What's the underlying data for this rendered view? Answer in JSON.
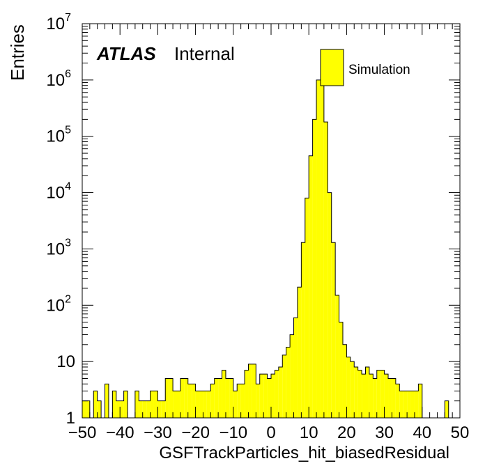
{
  "chart_data": {
    "type": "bar",
    "title": "",
    "xlabel": "GSFTrackParticles_hit_biasedResidual",
    "ylabel": "Entries",
    "xlim": [
      -50,
      50
    ],
    "ylim": [
      1,
      10000000
    ],
    "log_y": true,
    "grid": false,
    "legend_position": "top-right",
    "bar_color": "#ffff00",
    "edge_color": "#000000",
    "bin_width": 1,
    "x_tick_labels": [
      "−50",
      "−40",
      "−30",
      "−20",
      "−10",
      "0",
      "10",
      "20",
      "30",
      "40",
      "50"
    ],
    "y_tick_labels": [
      {
        "base": "1",
        "exp": ""
      },
      {
        "base": "10",
        "exp": ""
      },
      {
        "base": "10",
        "exp": "2"
      },
      {
        "base": "10",
        "exp": "3"
      },
      {
        "base": "10",
        "exp": "4"
      },
      {
        "base": "10",
        "exp": "5"
      },
      {
        "base": "10",
        "exp": "6"
      },
      {
        "base": "10",
        "exp": "7"
      }
    ],
    "series": [
      {
        "name": "Simulation",
        "bin_low_edges": [
          -50,
          -49,
          -48,
          -47,
          -46,
          -45,
          -44,
          -43,
          -42,
          -41,
          -40,
          -39,
          -38,
          -37,
          -36,
          -35,
          -34,
          -33,
          -32,
          -31,
          -30,
          -29,
          -28,
          -27,
          -26,
          -25,
          -24,
          -23,
          -22,
          -21,
          -20,
          -19,
          -18,
          -17,
          -16,
          -15,
          -14,
          -13,
          -12,
          -11,
          -10,
          -9,
          -8,
          -7,
          -6,
          -5,
          -4,
          -3,
          -2,
          -1,
          0,
          1,
          2,
          3,
          4,
          5,
          6,
          7,
          8,
          9,
          10,
          11,
          12,
          13,
          14,
          15,
          16,
          17,
          18,
          19,
          20,
          21,
          22,
          23,
          24,
          25,
          26,
          27,
          28,
          29,
          30,
          31,
          32,
          33,
          34,
          35,
          36,
          37,
          38,
          39,
          40,
          41,
          42,
          43,
          44,
          45,
          46,
          47,
          48,
          49
        ],
        "values": [
          2,
          2,
          1,
          3,
          2,
          1,
          4,
          1,
          3,
          2,
          2,
          3,
          0,
          0,
          3,
          2,
          2,
          2,
          3,
          3,
          2,
          2,
          5,
          5,
          3,
          3,
          5,
          5,
          4,
          4,
          3,
          3,
          3,
          3,
          4,
          5,
          5,
          7,
          5,
          5,
          3,
          4,
          4,
          7,
          9,
          9,
          4,
          6,
          6,
          5,
          6,
          7,
          8,
          13,
          18,
          30,
          60,
          210,
          1300,
          8000,
          45000,
          200000,
          1000000,
          1000000,
          180000,
          10000,
          1300,
          150,
          50,
          20,
          12,
          10,
          8,
          7,
          6,
          8,
          6,
          5,
          7,
          7,
          6,
          5,
          5,
          4,
          3,
          3,
          3,
          3,
          3,
          4,
          0,
          1,
          1,
          0,
          1,
          1,
          2,
          0,
          0,
          0
        ]
      }
    ]
  },
  "annotations": {
    "atlas": "ATLAS",
    "internal": "Internal"
  },
  "legend": {
    "entry": "Simulation"
  }
}
